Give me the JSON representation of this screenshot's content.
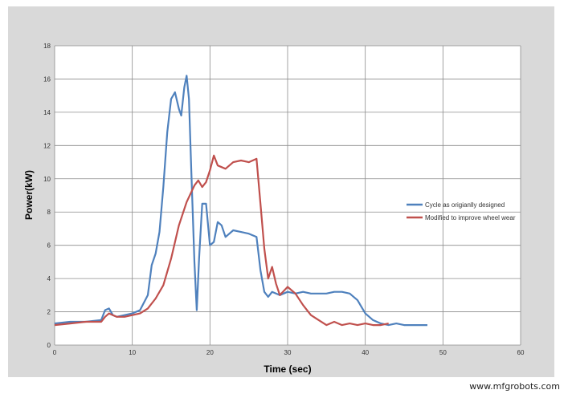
{
  "watermark": "www.mfgrobots.com",
  "chart_data": {
    "type": "line",
    "title": "",
    "xlabel": "Time (sec)",
    "ylabel": "Power(kW)",
    "xlim": [
      0,
      60
    ],
    "ylim": [
      0,
      18
    ],
    "x_ticks": [
      0,
      10,
      20,
      30,
      40,
      50,
      60
    ],
    "y_ticks": [
      0,
      2,
      4,
      6,
      8,
      10,
      12,
      14,
      16,
      18
    ],
    "grid": true,
    "legend_position": "right",
    "series": [
      {
        "name": "Cycle as origianlly designed",
        "color": "#4f81bd",
        "x": [
          0,
          2,
          4,
          6,
          6.5,
          7,
          7.5,
          8,
          9,
          10,
          11,
          12,
          12.5,
          13,
          13.5,
          14,
          14.5,
          15,
          15.5,
          16,
          16.3,
          16.7,
          17,
          17.3,
          17.6,
          18,
          18.3,
          18.6,
          19,
          19.5,
          20,
          20.5,
          21,
          21.5,
          22,
          23,
          24,
          25,
          26,
          26.5,
          27,
          27.5,
          28,
          29,
          30,
          31,
          32,
          33,
          34,
          35,
          36,
          37,
          38,
          39,
          40,
          41,
          42,
          43,
          44,
          45,
          46,
          47,
          48
        ],
        "y": [
          1.3,
          1.4,
          1.4,
          1.5,
          2.1,
          2.2,
          1.8,
          1.7,
          1.8,
          1.9,
          2.1,
          3.0,
          4.8,
          5.5,
          6.8,
          9.5,
          12.8,
          14.8,
          15.2,
          14.2,
          13.8,
          15.5,
          16.2,
          14.8,
          10.5,
          5.0,
          2.1,
          5.2,
          8.5,
          8.5,
          6.0,
          6.2,
          7.4,
          7.2,
          6.5,
          6.9,
          6.8,
          6.7,
          6.5,
          4.5,
          3.2,
          2.9,
          3.2,
          3.0,
          3.2,
          3.1,
          3.2,
          3.1,
          3.1,
          3.1,
          3.2,
          3.2,
          3.1,
          2.7,
          1.9,
          1.5,
          1.3,
          1.2,
          1.3,
          1.2,
          1.2,
          1.2,
          1.2
        ]
      },
      {
        "name": "Modified to improve wheel wear",
        "color": "#c0504d",
        "x": [
          0,
          2,
          4,
          6,
          6.5,
          7,
          7.5,
          8,
          9,
          10,
          11,
          12,
          13,
          14,
          15,
          16,
          17,
          18,
          18.5,
          19,
          19.5,
          20,
          20.5,
          21,
          22,
          23,
          24,
          25,
          26,
          26.5,
          27,
          27.5,
          28,
          28.5,
          29,
          30,
          31,
          32,
          33,
          34,
          35,
          36,
          37,
          38,
          39,
          40,
          41,
          42,
          43
        ],
        "y": [
          1.2,
          1.3,
          1.4,
          1.4,
          1.7,
          1.9,
          1.8,
          1.7,
          1.7,
          1.8,
          1.9,
          2.2,
          2.8,
          3.6,
          5.2,
          7.2,
          8.6,
          9.6,
          9.9,
          9.5,
          9.8,
          10.5,
          11.4,
          10.8,
          10.6,
          11.0,
          11.1,
          11.0,
          11.2,
          8.5,
          5.8,
          4.0,
          4.7,
          3.7,
          3.0,
          3.5,
          3.1,
          2.4,
          1.8,
          1.5,
          1.2,
          1.4,
          1.2,
          1.3,
          1.2,
          1.3,
          1.2,
          1.2,
          1.3
        ]
      }
    ]
  }
}
